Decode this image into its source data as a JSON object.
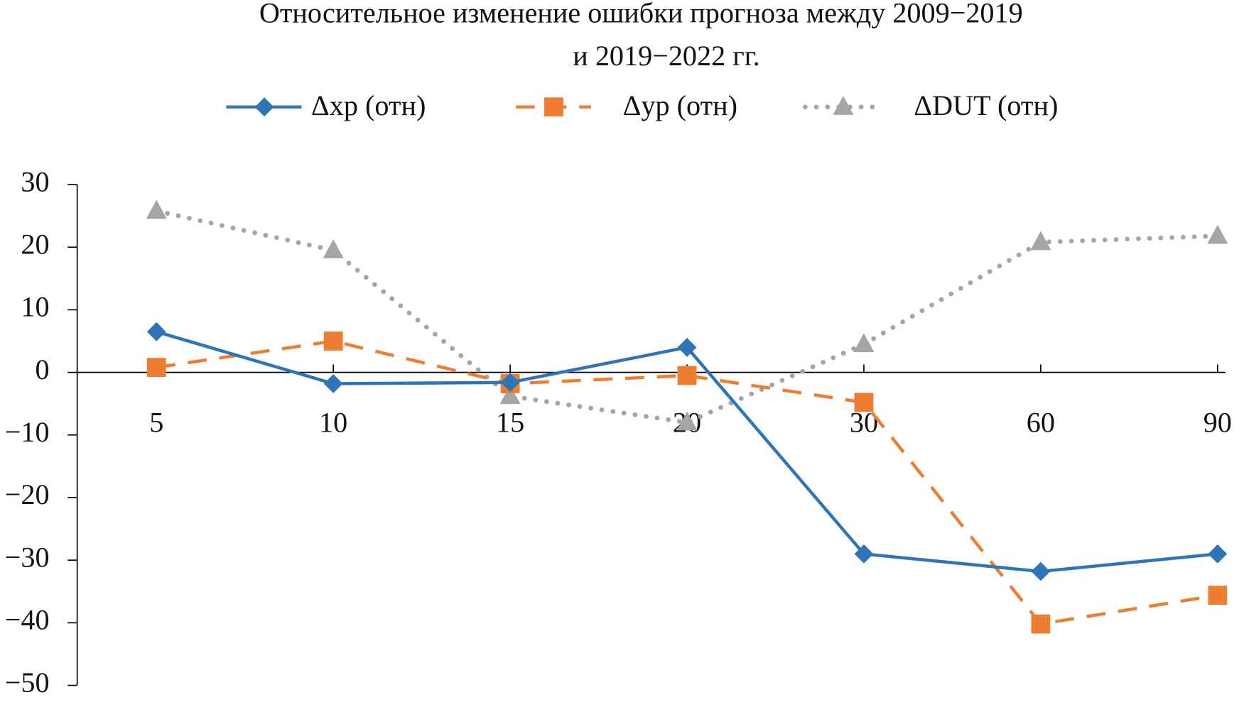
{
  "chart_data": {
    "type": "line",
    "title": [
      "Относительное изменение ошибки прогноза между 2009−2019",
      "и 2019−2022 гг."
    ],
    "categories": [
      "5",
      "10",
      "15",
      "20",
      "30",
      "60",
      "90"
    ],
    "series": [
      {
        "name": "Δxp (отн)",
        "color": "#2e75b6",
        "marker": "diamond",
        "style": "solid",
        "values": [
          6.5,
          -1.8,
          -1.6,
          4,
          -29,
          -31.8,
          -29
        ]
      },
      {
        "name": "Δyp (отн)",
        "color": "#ed7d31",
        "marker": "square",
        "style": "dashed",
        "values": [
          0.8,
          5,
          -1.8,
          -0.5,
          -4.8,
          -40.2,
          -35.6
        ]
      },
      {
        "name": "ΔDUT (отн)",
        "color": "#a5a5a5",
        "marker": "triangle",
        "style": "dotted",
        "values": [
          25.8,
          19.5,
          -3.8,
          -8,
          4.5,
          20.8,
          21.8
        ]
      }
    ],
    "ylim": [
      -50,
      30
    ],
    "yticks": [
      {
        "value": -50,
        "label": "−50"
      },
      {
        "value": -40,
        "label": "−40"
      },
      {
        "value": -30,
        "label": "−30"
      },
      {
        "value": -20,
        "label": "−20"
      },
      {
        "value": -10,
        "label": "−10"
      },
      0,
      10,
      20,
      30
    ],
    "legend": "top"
  }
}
